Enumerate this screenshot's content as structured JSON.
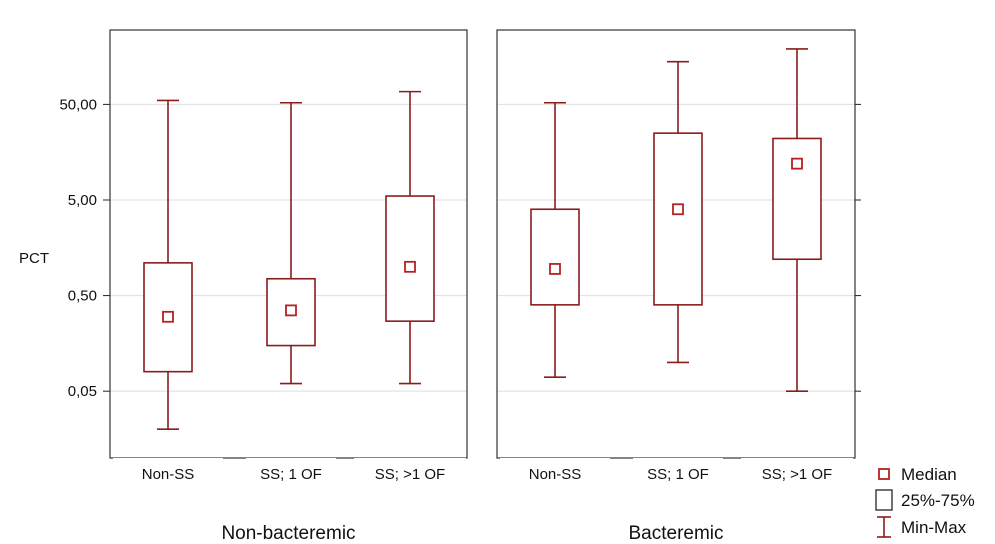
{
  "chart_data": {
    "type": "box",
    "ylabel": "PCT",
    "y_scale": "log",
    "ylim": [
      0.01,
      300
    ],
    "y_ticks": [
      0.05,
      0.5,
      5,
      50
    ],
    "y_tick_labels": [
      "0,05",
      "0,50",
      "5,00",
      "50,00"
    ],
    "grid": true,
    "legend": {
      "position": "bottom-right",
      "entries": [
        {
          "key": "median",
          "label": "Median"
        },
        {
          "key": "box",
          "label": "25%-75%"
        },
        {
          "key": "whisker",
          "label": "Min-Max"
        }
      ]
    },
    "colors": {
      "box": "#8b1c1c",
      "median": "#b22222",
      "grid": "#dedede"
    },
    "panels": [
      {
        "title": "Non-bacteremic",
        "categories": [
          "Non-SS",
          "SS; 1 OF",
          "SS; >1 OF"
        ],
        "boxes": [
          {
            "min": 0.02,
            "q1": 0.08,
            "median": 0.3,
            "q3": 1.1,
            "max": 55
          },
          {
            "min": 0.06,
            "q1": 0.15,
            "median": 0.35,
            "q3": 0.75,
            "max": 52
          },
          {
            "min": 0.06,
            "q1": 0.27,
            "median": 1.0,
            "q3": 5.5,
            "max": 68
          }
        ]
      },
      {
        "title": "Bacteremic",
        "categories": [
          "Non-SS",
          "SS; 1 OF",
          "SS; >1 OF"
        ],
        "boxes": [
          {
            "min": 0.07,
            "q1": 0.4,
            "median": 0.95,
            "q3": 4.0,
            "max": 52
          },
          {
            "min": 0.1,
            "q1": 0.4,
            "median": 4.0,
            "q3": 25,
            "max": 140
          },
          {
            "min": 0.05,
            "q1": 1.2,
            "median": 12,
            "q3": 22,
            "max": 190
          }
        ]
      }
    ]
  }
}
